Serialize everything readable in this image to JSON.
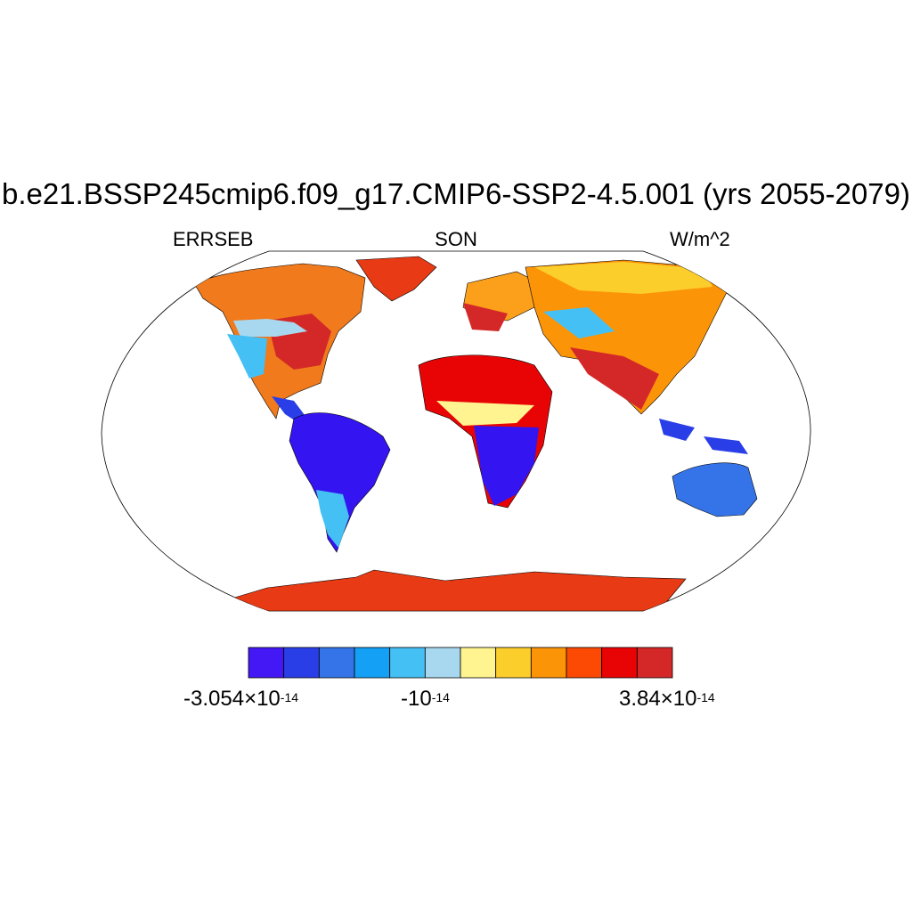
{
  "title": "b.e21.BSSP245cmip6.f09_g17.CMIP6-SSP2-4.5.001 (yrs 2055-2079)",
  "left_string": "ERRSEB",
  "center_string": "SON",
  "right_string": "W/m^2",
  "colorbar": {
    "colors": [
      "#4418f4",
      "#2a3ee8",
      "#3474e8",
      "#14a0f4",
      "#44c0f4",
      "#a8d8f0",
      "#fff490",
      "#fcce2c",
      "#fc9408",
      "#fc4a04",
      "#e80404",
      "#d42828"
    ],
    "labels": {
      "min": {
        "mantissa": "-3.054",
        "times": "×10",
        "exponent": "-14"
      },
      "mid": {
        "base": "-10",
        "exponent": "-14"
      },
      "max": {
        "mantissa": "3.84",
        "times": "×10",
        "exponent": "-14"
      }
    }
  }
}
